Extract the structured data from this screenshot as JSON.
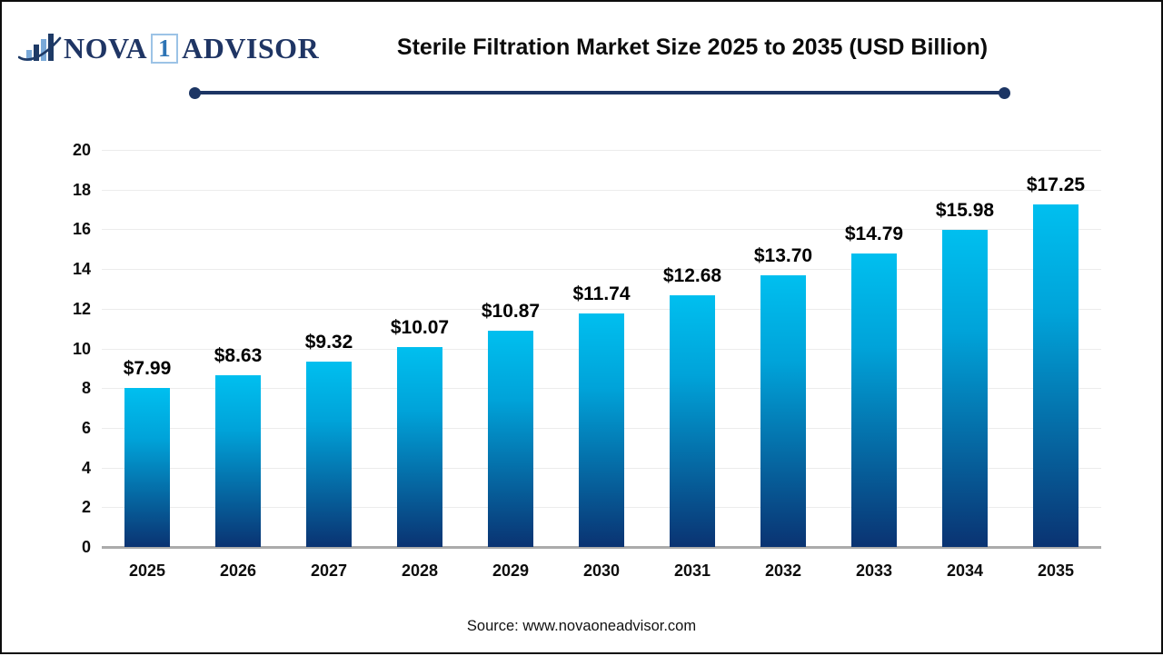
{
  "header": {
    "logo": {
      "icon": "bar-chart-swoosh-icon",
      "nova": "NOVA",
      "one": "1",
      "advisor": "ADVISOR"
    },
    "title": "Sterile Filtration Market Size 2025 to 2035 (USD Billion)"
  },
  "chart_data": {
    "type": "bar",
    "title": "Sterile Filtration Market Size 2025 to 2035 (USD Billion)",
    "unit": "USD Billion",
    "categories": [
      "2025",
      "2026",
      "2027",
      "2028",
      "2029",
      "2030",
      "2031",
      "2032",
      "2033",
      "2034",
      "2035"
    ],
    "values": [
      7.99,
      8.63,
      9.32,
      10.07,
      10.87,
      11.74,
      12.68,
      13.7,
      14.79,
      15.98,
      17.25
    ],
    "value_labels": [
      "$7.99",
      "$8.63",
      "$9.32",
      "$10.07",
      "$10.87",
      "$11.74",
      "$12.68",
      "$13.70",
      "$14.79",
      "$15.98",
      "$17.25"
    ],
    "ylim": [
      0,
      20
    ],
    "yticks": [
      0,
      2,
      4,
      6,
      8,
      10,
      12,
      14,
      16,
      18,
      20
    ],
    "grid": true,
    "legend": false,
    "bar_color_top": "#00bfef",
    "bar_color_mid": "#00a3d9",
    "bar_color_bottom": "#0a3372"
  },
  "footer": {
    "source": "Source: www.novaoneadvisor.com"
  },
  "colors": {
    "navy": "#1f3564",
    "logo_light_blue": "#7aa9d8",
    "logo_one_blue": "#2e74b5",
    "grid": "#ececec",
    "baseline": "#ababab",
    "text": "#0d0d0d"
  }
}
